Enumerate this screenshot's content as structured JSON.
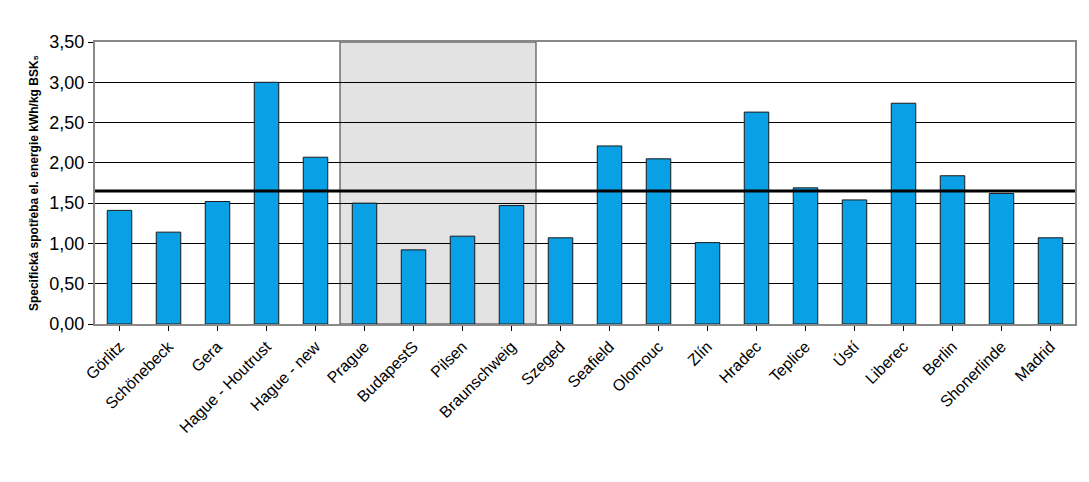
{
  "chart_data": {
    "type": "bar",
    "y_label": "Specifická spotřeba el. energie kWh/kg BSK₅",
    "categories": [
      "Görlitz",
      "Schönebeck",
      "Gera",
      "Hague - Houtrust",
      "Hague - new",
      "Prague",
      "BudapestS",
      "Pilsen",
      "Braunschweig",
      "Szeged",
      "Seafield",
      "Olomouc",
      "Zlín",
      "Hradec",
      "Teplice",
      "Ústí",
      "Liberec",
      "Berlin",
      "Shonerlinde",
      "Madrid"
    ],
    "values": [
      1.41,
      1.14,
      1.52,
      3.0,
      2.07,
      1.5,
      0.92,
      1.09,
      1.47,
      1.07,
      2.21,
      2.05,
      1.01,
      2.63,
      1.69,
      1.54,
      2.74,
      1.84,
      1.62,
      1.07
    ],
    "color": "#0aa0e6",
    "reference_line": 1.65,
    "highlight_categories": [
      "Prague",
      "Braunschweig"
    ],
    "ylim": [
      0,
      3.5
    ],
    "yticks": [
      {
        "value": 0,
        "label": "0,00"
      },
      {
        "value": 0.5,
        "label": "0,50"
      },
      {
        "value": 1,
        "label": "1,00"
      },
      {
        "value": 1.5,
        "label": "1,50"
      },
      {
        "value": 2,
        "label": "2,00"
      },
      {
        "value": 2.5,
        "label": "2,50"
      },
      {
        "value": 3,
        "label": "3,00"
      },
      {
        "value": 3.5,
        "label": "3,50"
      }
    ],
    "grid": true
  }
}
